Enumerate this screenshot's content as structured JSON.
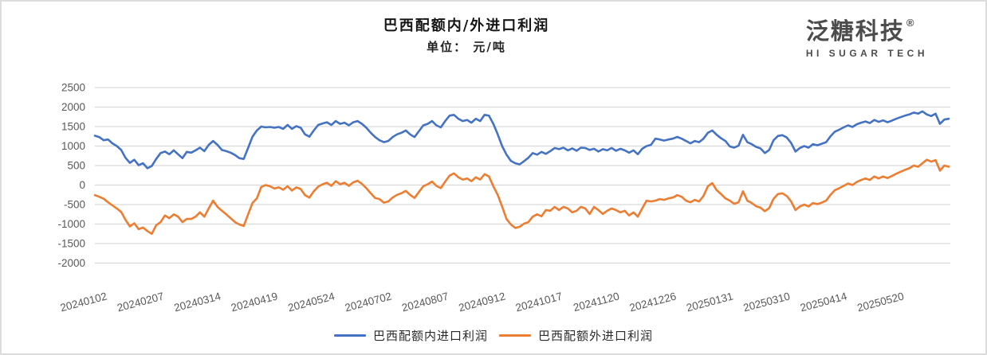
{
  "header": {
    "title": "巴西配额内/外进口利润",
    "subtitle": "单位： 元/吨"
  },
  "logo": {
    "brand": "泛糖科技",
    "registered": "®",
    "tagline": "HI SUGAR TECH"
  },
  "legend": [
    {
      "label": "巴西配额内进口利润",
      "color": "#4472C4"
    },
    {
      "label": "巴西配额外进口利润",
      "color": "#ED7D31"
    }
  ],
  "colors": {
    "series_blue": "#4472C4",
    "series_orange": "#ED7D31",
    "gridline": "#d9d9d9",
    "axis_text": "#595959"
  },
  "chart_data": {
    "type": "line",
    "title": "巴西配额内/外进口利润",
    "unit": "元/吨",
    "grid": true,
    "legend_position": "bottom",
    "ylim": [
      -2000,
      2500
    ],
    "y_tick_step": 500,
    "y_tick_labels": [
      "2500",
      "2000",
      "1500",
      "1000",
      "500",
      "0",
      "-500",
      "-1000",
      "-1500",
      "-2000"
    ],
    "x_tick_labels": [
      "20240102",
      "20240207",
      "20240314",
      "20240419",
      "20240524",
      "20240702",
      "20240807",
      "20240912",
      "20241017",
      "20241120",
      "20241226",
      "20250131",
      "20250310",
      "20250414",
      "20250520"
    ],
    "x_ticks_every_n_points": 13,
    "series": [
      {
        "name": "巴西配额内进口利润",
        "color": "#4472C4",
        "values": [
          1265,
          1230,
          1150,
          1170,
          1070,
          1000,
          900,
          700,
          570,
          650,
          510,
          560,
          430,
          490,
          670,
          820,
          860,
          790,
          890,
          790,
          690,
          850,
          830,
          890,
          960,
          870,
          1030,
          1130,
          1030,
          900,
          870,
          830,
          770,
          690,
          670,
          950,
          1240,
          1400,
          1500,
          1480,
          1490,
          1470,
          1490,
          1440,
          1540,
          1440,
          1510,
          1470,
          1300,
          1240,
          1400,
          1540,
          1580,
          1610,
          1540,
          1640,
          1570,
          1600,
          1530,
          1610,
          1640,
          1570,
          1470,
          1340,
          1230,
          1150,
          1100,
          1130,
          1230,
          1300,
          1340,
          1400,
          1300,
          1230,
          1380,
          1530,
          1570,
          1640,
          1530,
          1480,
          1640,
          1780,
          1800,
          1700,
          1640,
          1670,
          1600,
          1700,
          1640,
          1800,
          1780,
          1570,
          1300,
          1000,
          780,
          620,
          560,
          530,
          610,
          700,
          820,
          780,
          850,
          800,
          870,
          950,
          920,
          960,
          890,
          940,
          880,
          960,
          950,
          900,
          930,
          860,
          920,
          890,
          950,
          880,
          930,
          890,
          830,
          890,
          790,
          930,
          1000,
          1030,
          1190,
          1170,
          1140,
          1170,
          1190,
          1235,
          1190,
          1130,
          1070,
          1130,
          1100,
          1190,
          1340,
          1400,
          1290,
          1200,
          1130,
          990,
          960,
          1010,
          1290,
          1100,
          1050,
          980,
          940,
          820,
          900,
          1150,
          1260,
          1280,
          1220,
          1080,
          860,
          950,
          1000,
          960,
          1050,
          1020,
          1060,
          1100,
          1250,
          1370,
          1420,
          1480,
          1530,
          1490,
          1560,
          1600,
          1630,
          1590,
          1670,
          1620,
          1660,
          1610,
          1650,
          1700,
          1740,
          1780,
          1810,
          1860,
          1830,
          1890,
          1810,
          1770,
          1830,
          1570,
          1680,
          1700
        ]
      },
      {
        "name": "巴西配额外进口利润",
        "color": "#ED7D31",
        "values": [
          -260,
          -300,
          -350,
          -440,
          -520,
          -600,
          -690,
          -890,
          -1060,
          -980,
          -1130,
          -1090,
          -1180,
          -1250,
          -1030,
          -950,
          -780,
          -850,
          -750,
          -810,
          -950,
          -870,
          -870,
          -810,
          -700,
          -810,
          -600,
          -400,
          -560,
          -660,
          -750,
          -850,
          -950,
          -1010,
          -1050,
          -750,
          -460,
          -340,
          -50,
          0,
          -30,
          -90,
          -60,
          -120,
          -30,
          -140,
          -60,
          -100,
          -260,
          -320,
          -160,
          -40,
          20,
          60,
          -20,
          100,
          20,
          60,
          -20,
          70,
          110,
          30,
          -80,
          -210,
          -330,
          -360,
          -450,
          -420,
          -320,
          -250,
          -210,
          -150,
          -250,
          -330,
          -180,
          -30,
          20,
          90,
          -20,
          -80,
          90,
          240,
          300,
          200,
          140,
          170,
          100,
          200,
          140,
          280,
          220,
          -30,
          -250,
          -550,
          -870,
          -1010,
          -1100,
          -1070,
          -990,
          -950,
          -810,
          -750,
          -800,
          -640,
          -660,
          -560,
          -640,
          -560,
          -600,
          -700,
          -660,
          -560,
          -600,
          -740,
          -560,
          -640,
          -740,
          -660,
          -600,
          -640,
          -700,
          -660,
          -780,
          -700,
          -810,
          -600,
          -400,
          -420,
          -400,
          -360,
          -380,
          -340,
          -320,
          -260,
          -300,
          -400,
          -440,
          -380,
          -420,
          -280,
          -30,
          50,
          -130,
          -230,
          -340,
          -400,
          -480,
          -440,
          -160,
          -400,
          -460,
          -540,
          -580,
          -670,
          -590,
          -350,
          -230,
          -210,
          -280,
          -420,
          -640,
          -550,
          -500,
          -550,
          -460,
          -490,
          -450,
          -400,
          -250,
          -130,
          -80,
          -20,
          40,
          0,
          80,
          130,
          170,
          130,
          220,
          170,
          220,
          180,
          230,
          290,
          340,
          390,
          430,
          500,
          470,
          560,
          650,
          600,
          640,
          370,
          500,
          470
        ]
      }
    ]
  }
}
